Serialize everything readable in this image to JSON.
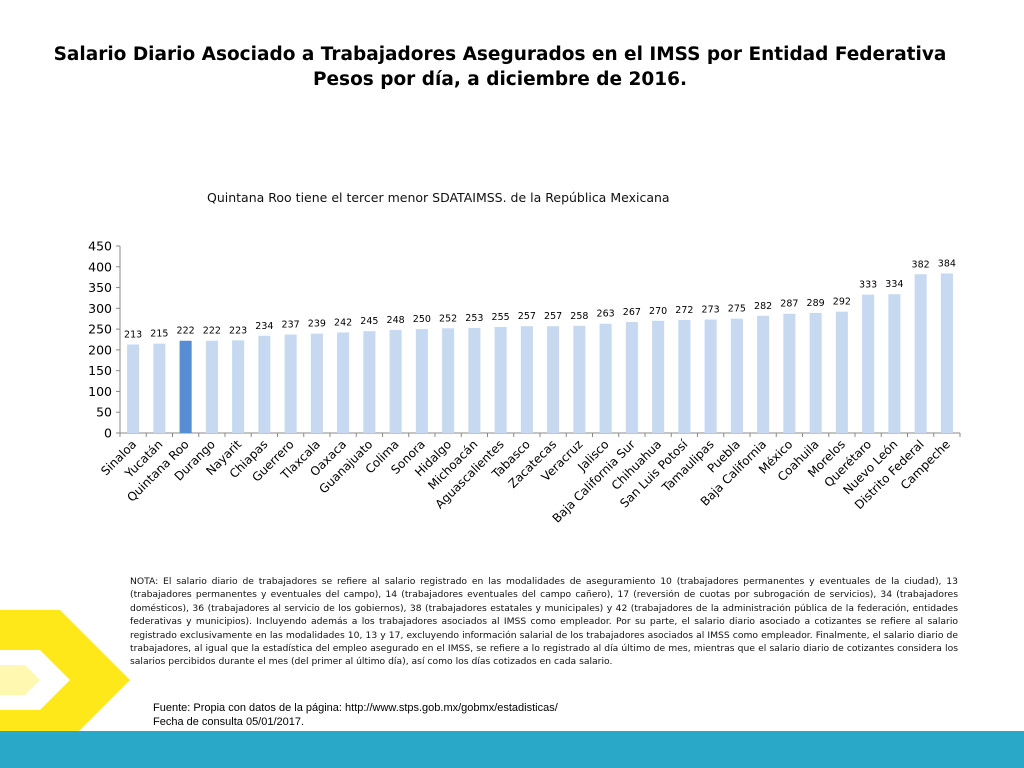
{
  "header": {
    "title_line1": "Salario Diario Asociado a Trabajadores Asegurados en el IMSS por Entidad Federativa",
    "title_line2": "Pesos por día, a diciembre de 2016."
  },
  "chart_caption": "Quintana Roo tiene el tercer menor SDATAIMSS. de la República Mexicana",
  "chart_data": {
    "type": "bar",
    "title": "",
    "xlabel": "",
    "ylabel": "",
    "ylim": [
      0,
      450
    ],
    "yticks": [
      0,
      50,
      100,
      150,
      200,
      250,
      300,
      350,
      400,
      450
    ],
    "grid": false,
    "categories": [
      "Sinaloa",
      "Yucatán",
      "Quintana Roo",
      "Durango",
      "Nayarit",
      "Chiapas",
      "Guerrero",
      "Tlaxcala",
      "Oaxaca",
      "Guanajuato",
      "Colima",
      "Sonora",
      "Hidalgo",
      "Michoacán",
      "Aguascalientes",
      "Tabasco",
      "Zacatecas",
      "Veracruz",
      "Jalisco",
      "Baja California Sur",
      "Chihuahua",
      "San Luis Potosí",
      "Tamaulipas",
      "Puebla",
      "Baja California",
      "México",
      "Coahuila",
      "Morelos",
      "Querétaro",
      "Nuevo León",
      "Distrito Federal",
      "Campeche"
    ],
    "values": [
      213,
      215,
      222,
      222,
      223,
      234,
      237,
      239,
      242,
      245,
      248,
      250,
      252,
      253,
      255,
      257,
      257,
      258,
      263,
      267,
      270,
      272,
      273,
      275,
      282,
      287,
      289,
      292,
      333,
      334,
      382,
      384
    ],
    "highlight": "Quintana Roo",
    "colors": {
      "bar": "#c6d9f1",
      "highlight": "#558ed5",
      "axis": "#888888",
      "label": "#000000"
    }
  },
  "note": "NOTA: El salario diario de trabajadores se refiere al salario registrado en las modalidades de aseguramiento 10 (trabajadores permanentes y eventuales de la ciudad), 13 (trabajadores permanentes y eventuales del campo), 14 (trabajadores eventuales del campo cañero), 17 (reversión de cuotas por subrogación de servicios), 34 (trabajadores domésticos), 36 (trabajadores al servicio de los gobiernos), 38 (trabajadores estatales y municipales) y 42 (trabajadores de la administración pública de la federación, entidades federativas y municipios). Incluyendo además a los trabajadores asociados al IMSS como empleador. Por su parte, el salario diario asociado a cotizantes se refiere al salario registrado exclusivamente en las modalidades 10, 13 y 17, excluyendo información salarial de los trabajadores asociados al IMSS como empleador. Finalmente, el salario diario de trabajadores, al igual que la estadística del empleo asegurado en el IMSS, se refiere a lo registrado al día último de mes, mientras que el salario diario de cotizantes considera los salarios percibidos durante el mes (del primer al último día), así como los días cotizados en cada salario.",
  "source": {
    "line1": "Fuente: Propia con datos de la página: http://www.stps.gob.mx/gobmx/estadisticas/",
    "line2": "Fecha de consulta 05/01/2017."
  },
  "theme": {
    "band_color": "#2aa8c8",
    "logo_color": "#ffe600"
  }
}
